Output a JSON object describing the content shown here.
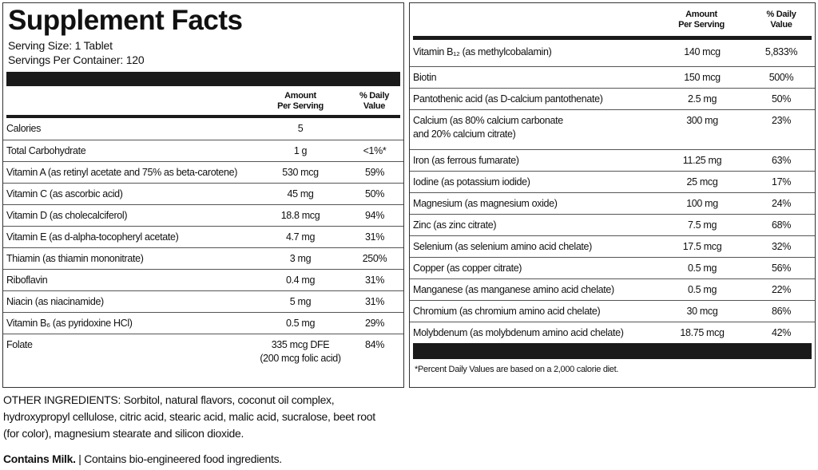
{
  "header": {
    "title": "Supplement Facts",
    "serving_size": "Serving Size: 1 Tablet",
    "servings_per_container": "Servings Per Container: 120"
  },
  "left_table": {
    "columns": [
      "Amount\nPer Serving",
      "% Daily\nValue"
    ],
    "rows": [
      {
        "name": "Calories",
        "amount": "5"
      },
      {
        "name": "Total Carbohydrate",
        "amount": "1 g",
        "dv": "<1%*"
      },
      {
        "name": "Vitamin A (as retinyl acetate and 75% as beta-carotene)",
        "amount": "530 mcg",
        "dv": "59%"
      },
      {
        "name": "Vitamin C (as ascorbic acid)",
        "amount": "45 mg",
        "dv": "50%"
      },
      {
        "name": "Vitamin D (as cholecalciferol)",
        "amount": "18.8 mcg",
        "dv": "94%"
      },
      {
        "name": "Vitamin E (as d-alpha-tocopheryl acetate)",
        "amount": "4.7 mg",
        "dv": "31%"
      },
      {
        "name": "Thiamin (as thiamin mononitrate)",
        "amount": "3 mg",
        "dv": "250%"
      },
      {
        "name": "Riboflavin",
        "amount": "0.4 mg",
        "dv": "31%"
      },
      {
        "name": "Niacin (as niacinamide)",
        "amount": "5 mg",
        "dv": "31%"
      },
      {
        "name": "Vitamin B₆ (as pyridoxine HCl)",
        "amount": "0.5 mg",
        "dv": "29%"
      },
      {
        "name": "Folate",
        "amount": "335 mcg DFE\n(200 mcg folic acid)",
        "dv": "84%"
      }
    ]
  },
  "right_table": {
    "columns": [
      "Amount\nPer Serving",
      "% Daily\nValue"
    ],
    "rows": [
      {
        "name": "Vitamin B₁₂ (as methylcobalamin)",
        "amount": "140 mcg",
        "dv": "5,833%"
      },
      {
        "name": "Biotin",
        "amount": "150 mcg",
        "dv": "500%"
      },
      {
        "name": "Pantothenic acid (as D-calcium pantothenate)",
        "amount": "2.5 mg",
        "dv": "50%"
      },
      {
        "name": "Calcium (as 80% calcium carbonate\n  and 20% calcium citrate)",
        "amount": "300 mg",
        "dv": "23%"
      },
      {
        "name": "Iron (as ferrous fumarate)",
        "amount": "11.25 mg",
        "dv": "63%"
      },
      {
        "name": "Iodine (as potassium iodide)",
        "amount": "25 mcg",
        "dv": "17%"
      },
      {
        "name": "Magnesium (as magnesium oxide)",
        "amount": "100 mg",
        "dv": "24%"
      },
      {
        "name": "Zinc (as zinc citrate)",
        "amount": "7.5 mg",
        "dv": "68%"
      },
      {
        "name": "Selenium (as selenium amino acid chelate)",
        "amount": "17.5 mcg",
        "dv": "32%"
      },
      {
        "name": "Copper (as copper citrate)",
        "amount": "0.5 mg",
        "dv": "56%"
      },
      {
        "name": "Manganese (as manganese amino acid chelate)",
        "amount": "0.5 mg",
        "dv": "22%"
      },
      {
        "name": "Chromium (as chromium amino acid chelate)",
        "amount": "30 mcg",
        "dv": "86%"
      },
      {
        "name": "Molybdenum (as molybdenum amino acid chelate)",
        "amount": "18.75 mcg",
        "dv": "42%"
      }
    ],
    "footnote": "*Percent Daily Values are based on a 2,000 calorie diet."
  },
  "other_ingredients": "OTHER INGREDIENTS: Sorbitol, natural flavors, coconut oil complex, hydroxypropyl cellulose, citric acid, stearic acid, malic acid, sucralose, beet root (for color), magnesium stearate and silicon dioxide.",
  "contains": {
    "bold": "Contains Milk.",
    "rest": "| Contains bio-engineered food ingredients."
  }
}
